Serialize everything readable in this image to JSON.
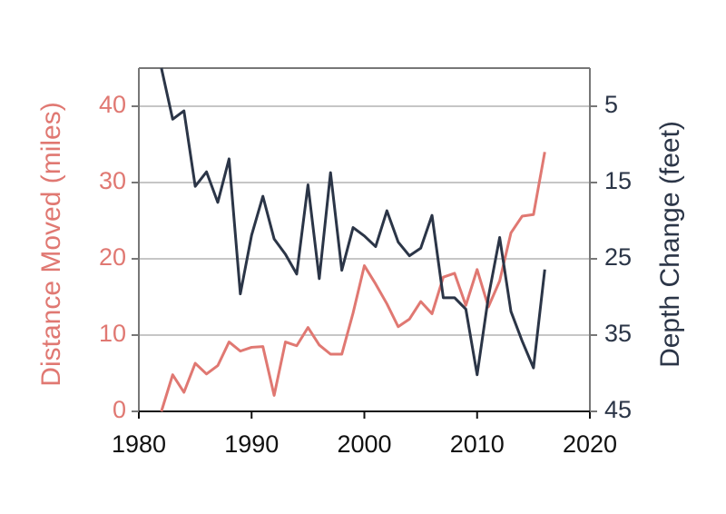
{
  "chart_data": {
    "type": "line",
    "x": [
      1982,
      1983,
      1984,
      1985,
      1986,
      1987,
      1988,
      1989,
      1990,
      1991,
      1992,
      1993,
      1994,
      1995,
      1996,
      1997,
      1998,
      1999,
      2000,
      2001,
      2002,
      2003,
      2004,
      2005,
      2006,
      2007,
      2008,
      2009,
      2010,
      2011,
      2012,
      2013,
      2014,
      2015,
      2016
    ],
    "xlim": [
      1980,
      2020
    ],
    "xticks": [
      1980,
      1990,
      2000,
      2010,
      2020
    ],
    "ylabel": "Distance Moved (miles)",
    "ylim": [
      0,
      45
    ],
    "yticks": [
      0,
      10,
      20,
      30,
      40
    ],
    "y2label": "Depth Change (feet)",
    "y2lim": [
      45,
      0
    ],
    "y2ticks": [
      5,
      15,
      25,
      35,
      45
    ],
    "grid": true,
    "series": [
      {
        "name": "Distance Moved (miles)",
        "color": "#e07872",
        "axis": "y",
        "values": [
          0,
          4.8,
          2.5,
          6.3,
          4.9,
          6,
          9.1,
          7.9,
          8.4,
          8.5,
          2.1,
          9.1,
          8.6,
          11,
          8.7,
          7.5,
          7.5,
          12.9,
          19.1,
          16.7,
          14.1,
          11.1,
          12.1,
          14.4,
          12.8,
          17.6,
          18.1,
          13.9,
          18.6,
          13.7,
          17.1,
          23.4,
          25.6,
          25.8,
          34
        ]
      },
      {
        "name": "Depth Change (feet)",
        "color": "#2b3547",
        "axis": "y2",
        "values": [
          0,
          6.7,
          5.6,
          15.5,
          13.6,
          17.6,
          11.9,
          29.6,
          21.9,
          16.8,
          22.4,
          24.4,
          27,
          15.3,
          27.6,
          13.7,
          26.5,
          20.9,
          22,
          23.4,
          18.7,
          22.8,
          24.6,
          23.6,
          19.3,
          30.1,
          30.1,
          31.6,
          40.2,
          30,
          22.2,
          31.9,
          35.8,
          39.3,
          26.4
        ]
      }
    ]
  }
}
